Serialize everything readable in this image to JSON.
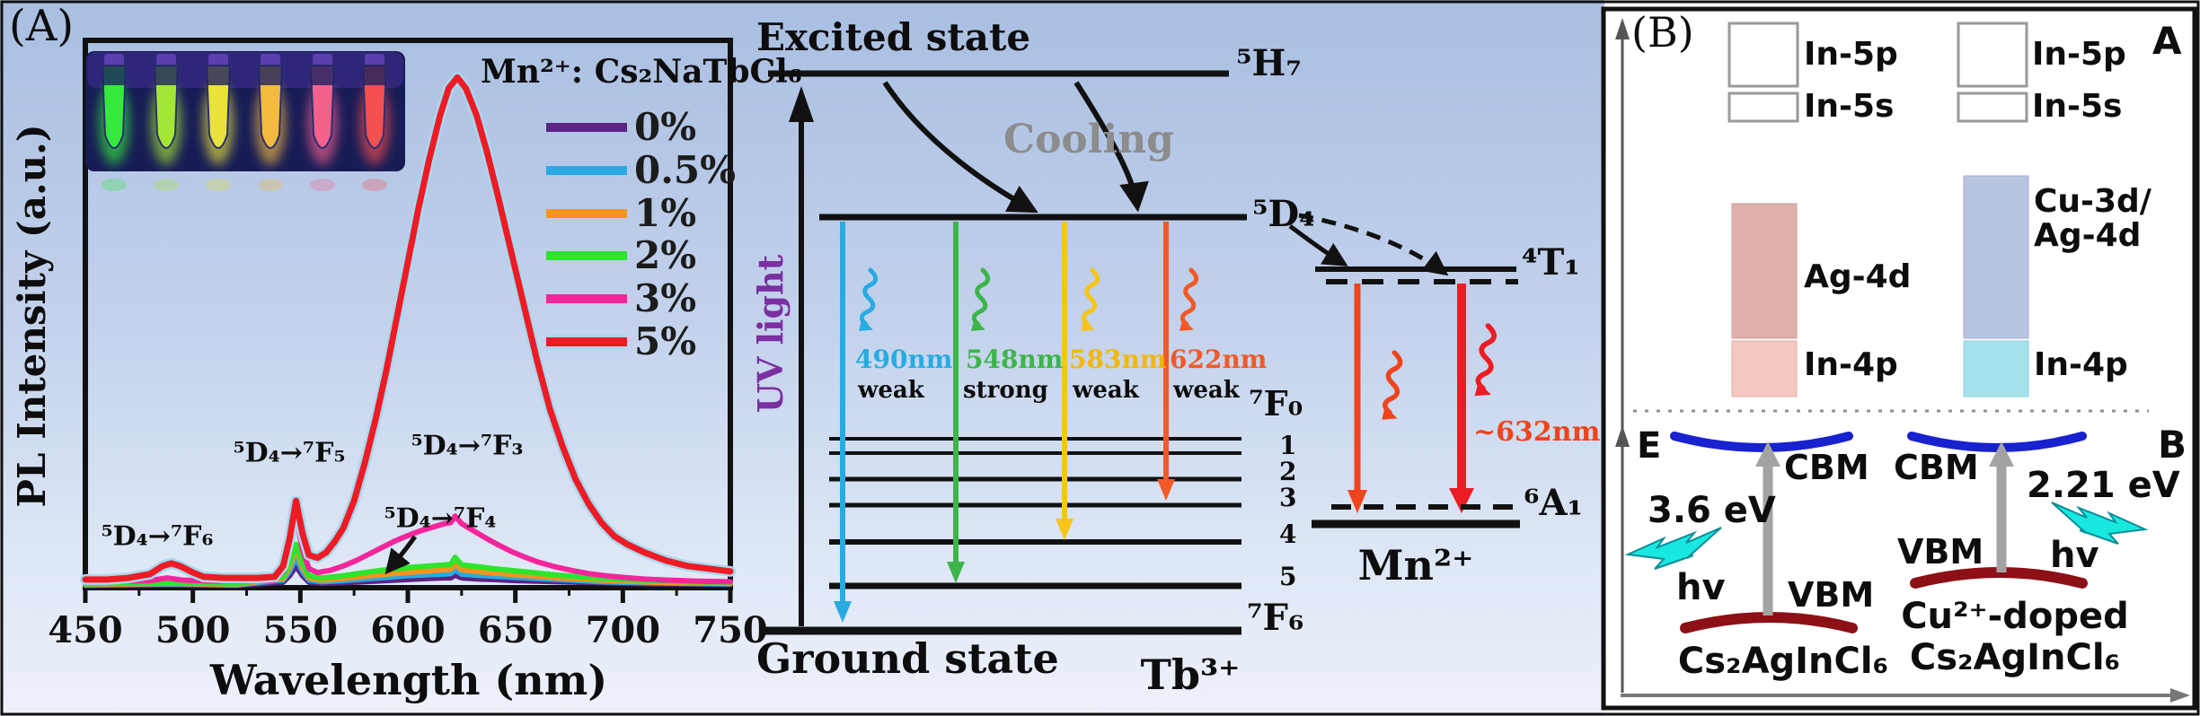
{
  "panel_a": {
    "label": "(A)",
    "xlabel": "Wavelength (nm)",
    "ylabel": "PL Intensity (a.u.)",
    "legend_title": "Mn²⁺: Cs₂NaTbCl₆",
    "annotations": [
      {
        "text": "⁵D₄→⁷F₆"
      },
      {
        "text": "⁵D₄→⁷F₅"
      },
      {
        "text": "⁵D₄→⁷F₃"
      },
      {
        "text": "⁵D₄→⁷F₄"
      }
    ],
    "inset": {
      "description": "six phosphor vials glowing under UV light",
      "vial_colors": [
        "#35e93c",
        "#a2e735",
        "#e9e23b",
        "#f4b93f",
        "#f4628b",
        "#f4504f"
      ],
      "background": "#171c56"
    }
  },
  "chart_data": {
    "type": "line",
    "title": "",
    "xlabel": "Wavelength (nm)",
    "ylabel": "PL Intensity (a.u.)",
    "xlim": [
      450,
      750
    ],
    "ylim": [
      0,
      100
    ],
    "x_ticks": [
      450,
      500,
      550,
      600,
      650,
      700,
      750
    ],
    "x_minor_step": 25,
    "grid": false,
    "legend_position": "upper right",
    "legend_title": "Mn²⁺: Cs₂NaTbCl₆",
    "series": [
      {
        "name": "0%",
        "color": "#5c2483",
        "points": [
          [
            450,
            0.4
          ],
          [
            490,
            0.5
          ],
          [
            520,
            0.4
          ],
          [
            542,
            1
          ],
          [
            545,
            2.2
          ],
          [
            548,
            4
          ],
          [
            551,
            2.2
          ],
          [
            554,
            1
          ],
          [
            560,
            0.8
          ],
          [
            570,
            0.9
          ],
          [
            580,
            1.1
          ],
          [
            590,
            1.3
          ],
          [
            600,
            1.5
          ],
          [
            610,
            1.7
          ],
          [
            617,
            1.8
          ],
          [
            620,
            1.8
          ],
          [
            622,
            2.3
          ],
          [
            625,
            1.8
          ],
          [
            632,
            1.6
          ],
          [
            640,
            1.5
          ],
          [
            650,
            1.3
          ],
          [
            660,
            1.2
          ],
          [
            670,
            1.1
          ],
          [
            680,
            1
          ],
          [
            690,
            0.9
          ],
          [
            700,
            0.8
          ],
          [
            715,
            0.7
          ],
          [
            730,
            0.65
          ],
          [
            750,
            0.6
          ]
        ]
      },
      {
        "name": "0.5%",
        "color": "#29abe2",
        "points": [
          [
            450,
            0.5
          ],
          [
            490,
            0.7
          ],
          [
            520,
            0.5
          ],
          [
            542,
            1.4
          ],
          [
            545,
            3
          ],
          [
            548,
            5.5
          ],
          [
            551,
            3
          ],
          [
            554,
            1.4
          ],
          [
            560,
            1.1
          ],
          [
            570,
            1.3
          ],
          [
            580,
            1.6
          ],
          [
            590,
            1.9
          ],
          [
            600,
            2.2
          ],
          [
            610,
            2.4
          ],
          [
            617,
            2.5
          ],
          [
            620,
            2.6
          ],
          [
            622,
            3.3
          ],
          [
            625,
            2.5
          ],
          [
            632,
            2.3
          ],
          [
            640,
            2.1
          ],
          [
            650,
            1.9
          ],
          [
            660,
            1.7
          ],
          [
            670,
            1.5
          ],
          [
            680,
            1.3
          ],
          [
            690,
            1.1
          ],
          [
            700,
            1
          ],
          [
            715,
            0.9
          ],
          [
            730,
            0.8
          ],
          [
            750,
            0.7
          ]
        ]
      },
      {
        "name": "1%",
        "color": "#f7941d",
        "points": [
          [
            450,
            0.6
          ],
          [
            490,
            0.8
          ],
          [
            520,
            0.6
          ],
          [
            542,
            1.7
          ],
          [
            545,
            3.8
          ],
          [
            548,
            7
          ],
          [
            551,
            3.8
          ],
          [
            554,
            1.8
          ],
          [
            560,
            1.4
          ],
          [
            570,
            1.7
          ],
          [
            580,
            2.1
          ],
          [
            590,
            2.5
          ],
          [
            600,
            2.8
          ],
          [
            610,
            3.1
          ],
          [
            617,
            3.3
          ],
          [
            620,
            3.4
          ],
          [
            622,
            4.4
          ],
          [
            625,
            3.3
          ],
          [
            632,
            3
          ],
          [
            640,
            2.7
          ],
          [
            650,
            2.4
          ],
          [
            660,
            2.1
          ],
          [
            670,
            1.8
          ],
          [
            680,
            1.6
          ],
          [
            690,
            1.4
          ],
          [
            700,
            1.2
          ],
          [
            715,
            1
          ],
          [
            730,
            0.9
          ],
          [
            750,
            0.8
          ]
        ]
      },
      {
        "name": "2%",
        "color": "#2ce52c",
        "points": [
          [
            450,
            0.7
          ],
          [
            490,
            1
          ],
          [
            520,
            0.7
          ],
          [
            542,
            2
          ],
          [
            545,
            4.5
          ],
          [
            548,
            8
          ],
          [
            551,
            4.5
          ],
          [
            554,
            2.2
          ],
          [
            560,
            1.8
          ],
          [
            570,
            2.2
          ],
          [
            580,
            2.8
          ],
          [
            590,
            3.3
          ],
          [
            600,
            3.7
          ],
          [
            610,
            4
          ],
          [
            617,
            4.2
          ],
          [
            620,
            4.3
          ],
          [
            622,
            5.6
          ],
          [
            625,
            4.2
          ],
          [
            632,
            3.9
          ],
          [
            640,
            3.5
          ],
          [
            650,
            3.1
          ],
          [
            660,
            2.7
          ],
          [
            670,
            2.3
          ],
          [
            680,
            2
          ],
          [
            690,
            1.7
          ],
          [
            700,
            1.5
          ],
          [
            715,
            1.3
          ],
          [
            730,
            1.1
          ],
          [
            750,
            1
          ]
        ]
      },
      {
        "name": "3%",
        "color": "#f5259b",
        "points": [
          [
            450,
            1
          ],
          [
            480,
            1.3
          ],
          [
            488,
            1.8
          ],
          [
            495,
            1.4
          ],
          [
            510,
            1.2
          ],
          [
            538,
            1.3
          ],
          [
            542,
            3
          ],
          [
            545,
            7.5
          ],
          [
            548,
            13
          ],
          [
            551,
            7
          ],
          [
            554,
            3.5
          ],
          [
            558,
            2.8
          ],
          [
            564,
            3.2
          ],
          [
            570,
            4
          ],
          [
            576,
            5
          ],
          [
            582,
            6.2
          ],
          [
            588,
            7.4
          ],
          [
            594,
            8.6
          ],
          [
            600,
            9.6
          ],
          [
            606,
            10.5
          ],
          [
            612,
            11.2
          ],
          [
            617,
            11.8
          ],
          [
            620,
            12
          ],
          [
            622,
            13.2
          ],
          [
            625,
            11.8
          ],
          [
            630,
            10.6
          ],
          [
            636,
            9.2
          ],
          [
            642,
            7.9
          ],
          [
            648,
            6.7
          ],
          [
            654,
            5.7
          ],
          [
            660,
            4.8
          ],
          [
            668,
            3.9
          ],
          [
            676,
            3.2
          ],
          [
            684,
            2.6
          ],
          [
            692,
            2.2
          ],
          [
            700,
            1.9
          ],
          [
            710,
            1.6
          ],
          [
            720,
            1.4
          ],
          [
            735,
            1.2
          ],
          [
            750,
            1.1
          ]
        ]
      },
      {
        "name": "5%",
        "color": "#ed1c24",
        "halo": "#a8d8f0",
        "points": [
          [
            450,
            1.5
          ],
          [
            460,
            1.5
          ],
          [
            470,
            1.8
          ],
          [
            480,
            2.5
          ],
          [
            486,
            4
          ],
          [
            490,
            4.5
          ],
          [
            494,
            4
          ],
          [
            500,
            2.8
          ],
          [
            505,
            2
          ],
          [
            515,
            1.8
          ],
          [
            530,
            1.8
          ],
          [
            538,
            2
          ],
          [
            542,
            4
          ],
          [
            545,
            9
          ],
          [
            548,
            16
          ],
          [
            551,
            10
          ],
          [
            554,
            6
          ],
          [
            558,
            5.5
          ],
          [
            562,
            6.5
          ],
          [
            566,
            8.5
          ],
          [
            570,
            11
          ],
          [
            575,
            16
          ],
          [
            580,
            23
          ],
          [
            585,
            31
          ],
          [
            590,
            40
          ],
          [
            595,
            50
          ],
          [
            600,
            60
          ],
          [
            605,
            70
          ],
          [
            610,
            79
          ],
          [
            615,
            87
          ],
          [
            619,
            92
          ],
          [
            623,
            94
          ],
          [
            627,
            92
          ],
          [
            632,
            87
          ],
          [
            637,
            80
          ],
          [
            642,
            72
          ],
          [
            648,
            62
          ],
          [
            654,
            52
          ],
          [
            660,
            42
          ],
          [
            666,
            33
          ],
          [
            672,
            26
          ],
          [
            678,
            20
          ],
          [
            684,
            15.5
          ],
          [
            690,
            12
          ],
          [
            696,
            9.5
          ],
          [
            702,
            8
          ],
          [
            710,
            6.5
          ],
          [
            720,
            5
          ],
          [
            730,
            4
          ],
          [
            740,
            3.5
          ],
          [
            750,
            3
          ]
        ]
      }
    ]
  },
  "diagram": {
    "excited_state": "Excited state",
    "ground_state": "Ground state",
    "cooling": "Cooling",
    "uv": "UV light",
    "levels": {
      "h7": "⁵H₇",
      "d4": "⁵D₄",
      "f0": "⁷F₀",
      "f6": "⁷F₆",
      "t1": "⁴T₁",
      "a1": "⁶A₁"
    },
    "f_numbers": [
      "1",
      "2",
      "3",
      "4",
      "5"
    ],
    "transitions": [
      {
        "wavelength": "490nm",
        "strength": "weak",
        "color": "#29abe2"
      },
      {
        "wavelength": "548nm",
        "strength": "strong",
        "color": "#3db54a"
      },
      {
        "wavelength": "583nm",
        "strength": "weak",
        "color": "#f2b705"
      },
      {
        "wavelength": "622nm",
        "strength": "weak",
        "color": "#f05a28"
      }
    ],
    "mn_emission": "~632nm",
    "ions": {
      "tb": "Tb³⁺",
      "mn": "Mn²⁺"
    }
  },
  "panel_b": {
    "label": "(B)",
    "sub_a": "A",
    "sub_b": "B",
    "e_label": "E",
    "left": {
      "in5p": "In-5p",
      "in5s": "In-5s",
      "ag4d": "Ag-4d",
      "in4p": "In-4p",
      "cbm": "CBM",
      "vbm": "VBM",
      "gap": "3.6 eV",
      "hv": "hv",
      "name": "Cs₂AgInCl₆"
    },
    "right": {
      "in5p": "In-5p",
      "in5s": "In-5s",
      "cu3d": "Cu-3d/",
      "ag4d": "Ag-4d",
      "in4p": "In-4p",
      "cbm": "CBM",
      "vbm": "VBM",
      "gap": "2.21 eV",
      "hv": "hv",
      "name1": "Cu²⁺-doped",
      "name2": "Cs₂AgInCl₆"
    }
  }
}
